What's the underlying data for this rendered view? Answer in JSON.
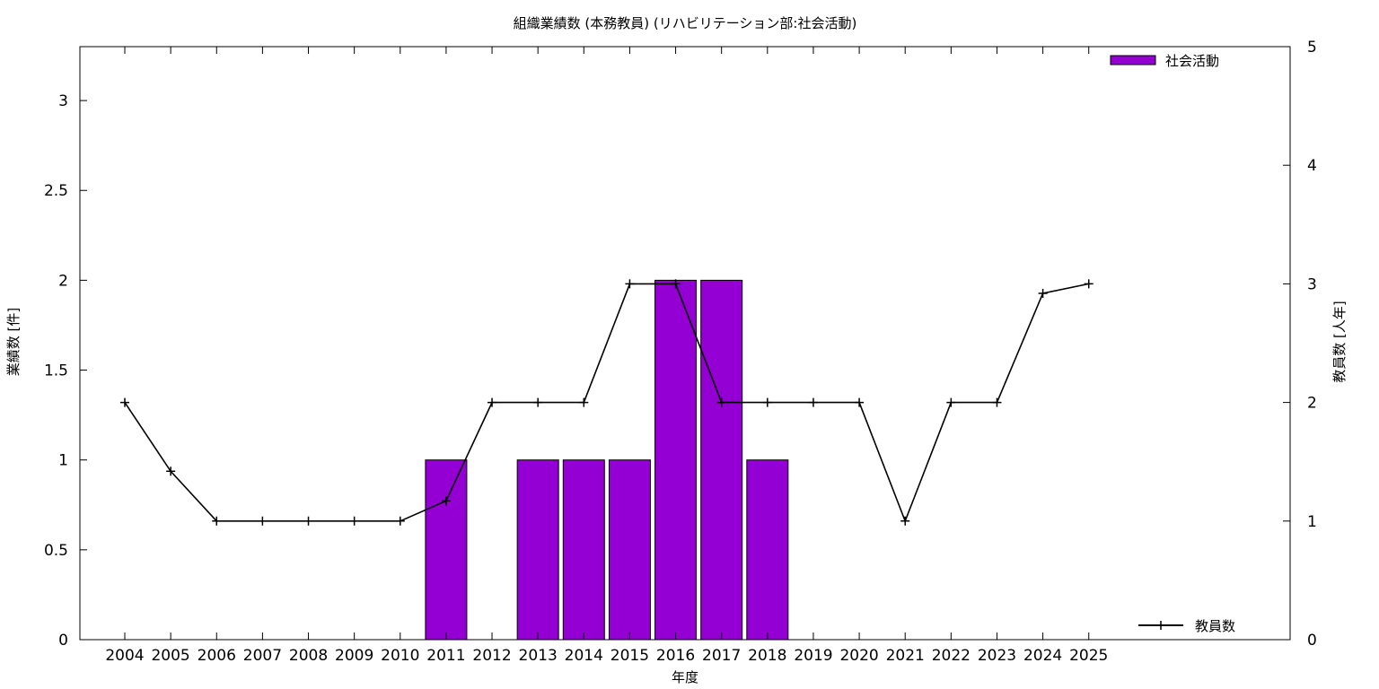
{
  "chart_data": {
    "type": "bar",
    "title": "組織業績数 (本務教員) (リハビリテーション部:社会活動)",
    "xlabel": "年度",
    "ylabel": "業績数 [件]",
    "y2label": "教員数 [人年]",
    "ylim": [
      0,
      3.3
    ],
    "y2lim": [
      0,
      5
    ],
    "yticks": [
      "0",
      "0.5",
      "1",
      "1.5",
      "2",
      "2.5",
      "3"
    ],
    "y2ticks": [
      "0",
      "1",
      "2",
      "3",
      "4",
      "5"
    ],
    "categories": [
      "2004",
      "2005",
      "2006",
      "2007",
      "2008",
      "2009",
      "2010",
      "2011",
      "2012",
      "2013",
      "2014",
      "2015",
      "2016",
      "2017",
      "2018",
      "2019",
      "2020",
      "2021",
      "2022",
      "2023",
      "2024",
      "2025"
    ],
    "series": [
      {
        "name": "社会活動",
        "type": "bar",
        "axis": "left",
        "color": "#9400d3",
        "values": [
          0,
          0,
          0,
          0,
          0,
          0,
          0,
          1,
          0,
          1,
          1,
          1,
          2,
          2,
          1,
          0,
          0,
          0,
          0,
          0,
          0,
          0
        ]
      },
      {
        "name": "教員数",
        "type": "line",
        "axis": "right",
        "color": "#000000",
        "values": [
          2,
          1.42,
          1,
          1,
          1,
          1,
          1,
          1.17,
          2,
          2,
          2,
          3,
          3,
          2,
          2,
          2,
          2,
          1,
          2,
          2,
          2.92,
          3
        ]
      }
    ],
    "legend": [
      "top-right",
      "bottom-right"
    ],
    "grid": false
  }
}
